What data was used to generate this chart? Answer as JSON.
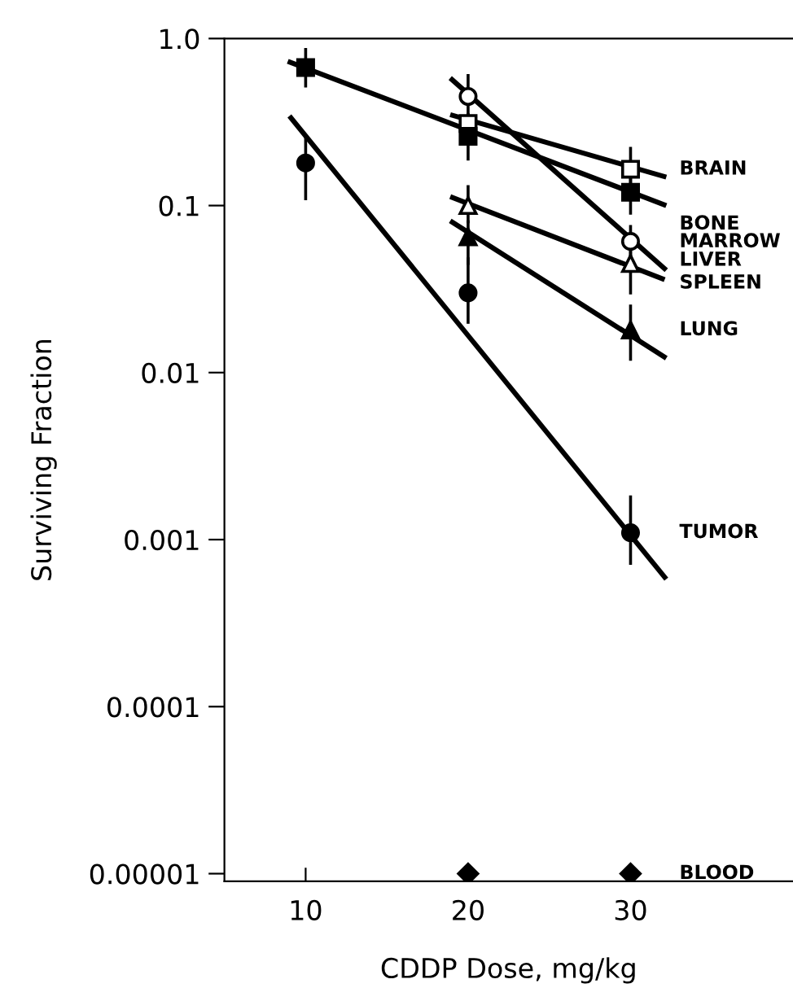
{
  "chart_data": {
    "type": "scatter",
    "xlabel": "CDDP Dose, mg/kg",
    "ylabel": "Surviving Fraction",
    "log": "y",
    "xlim": [
      5,
      40
    ],
    "xticks": [
      10,
      20,
      30
    ],
    "ylim": [
      9e-06,
      1.0
    ],
    "yticks": [
      {
        "value": 1.0,
        "label": "1.0"
      },
      0.1,
      0.01,
      0.001,
      0.0001,
      {
        "value": 1e-05,
        "label": "0.00001"
      }
    ],
    "grid": false,
    "legend": false,
    "series": [
      {
        "name": "BRAIN",
        "color": "#ffffff",
        "marker": "square",
        "x": [
          20,
          30
        ],
        "values": [
          0.31,
          0.165
        ],
        "errors": [
          null,
          [
            0.13,
            0.22
          ]
        ]
      },
      {
        "name": "BONE MARROW",
        "color": "#000000",
        "marker": "square",
        "x": [
          10,
          20,
          30
        ],
        "values": [
          0.67,
          0.26,
          0.12
        ],
        "errors": [
          [
            0.52,
            0.86
          ],
          [
            0.19,
            0.35
          ],
          [
            0.09,
            0.15
          ]
        ]
      },
      {
        "name": "LIVER",
        "color": "#ffffff",
        "marker": "circle",
        "x": [
          20,
          30
        ],
        "values": [
          0.45,
          0.061
        ],
        "errors": [
          [
            0.35,
            0.6
          ],
          [
            0.05,
            0.075
          ]
        ]
      },
      {
        "name": "SPLEEN",
        "color": "#ffffff",
        "marker": "triangle",
        "x": [
          20,
          30
        ],
        "values": [
          0.1,
          0.045
        ],
        "errors": [
          [
            0.08,
            0.13
          ],
          [
            0.03,
            0.06
          ]
        ]
      },
      {
        "name": "LUNG",
        "color": "#000000",
        "marker": "triangle",
        "x": [
          20,
          30
        ],
        "values": [
          0.065,
          0.018
        ],
        "errors": [
          [
            0.045,
            0.08
          ],
          [
            0.012,
            0.025
          ]
        ]
      },
      {
        "name": "TUMOR",
        "color": "#000000",
        "marker": "circle",
        "x": [
          10,
          20,
          30
        ],
        "values": [
          0.18,
          0.03,
          0.0011
        ],
        "errors": [
          [
            0.11,
            0.26
          ],
          [
            0.02,
            0.048
          ],
          [
            0.00072,
            0.0018
          ]
        ]
      },
      {
        "name": "BLOOD",
        "color": "#000000",
        "marker": "diamond",
        "x": [
          20,
          30
        ],
        "values": [
          1e-05,
          1e-05
        ]
      },
      {
        "type": "line",
        "color": "#000000",
        "x": [
          18.9,
          32.2
        ],
        "values": [
          0.35,
          0.148
        ]
      },
      {
        "type": "line",
        "color": "#000000",
        "x": [
          8.9,
          32.2
        ],
        "values": [
          0.73,
          0.1
        ]
      },
      {
        "type": "line",
        "color": "#000000",
        "x": [
          18.9,
          32.2
        ],
        "values": [
          0.58,
          0.041
        ]
      },
      {
        "type": "line",
        "color": "#000000",
        "x": [
          18.9,
          32.1
        ],
        "values": [
          0.113,
          0.036
        ]
      },
      {
        "type": "line",
        "color": "#000000",
        "x": [
          18.9,
          32.2
        ],
        "values": [
          0.081,
          0.0122
        ]
      },
      {
        "type": "line",
        "color": "#000000",
        "x": [
          9.0,
          32.2
        ],
        "values": [
          0.344,
          0.00058
        ]
      }
    ]
  }
}
